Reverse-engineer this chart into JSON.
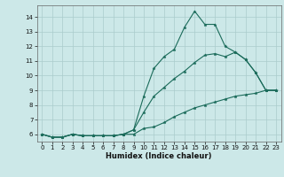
{
  "xlabel": "Humidex (Indice chaleur)",
  "background_color": "#cce8e8",
  "grid_color": "#aacccc",
  "line_color": "#1a6b5a",
  "xlim": [
    -0.5,
    23.5
  ],
  "ylim": [
    5.5,
    14.8
  ],
  "xticks": [
    0,
    1,
    2,
    3,
    4,
    5,
    6,
    7,
    8,
    9,
    10,
    11,
    12,
    13,
    14,
    15,
    16,
    17,
    18,
    19,
    20,
    21,
    22,
    23
  ],
  "yticks": [
    6,
    7,
    8,
    9,
    10,
    11,
    12,
    13,
    14
  ],
  "series1_x": [
    0,
    1,
    2,
    3,
    4,
    5,
    6,
    7,
    8,
    9,
    10,
    11,
    12,
    13,
    14,
    15,
    16,
    17,
    18,
    19,
    20,
    21,
    22,
    23
  ],
  "series1_y": [
    6.0,
    5.8,
    5.8,
    6.0,
    5.9,
    5.9,
    5.9,
    5.9,
    6.0,
    6.3,
    8.6,
    10.5,
    11.3,
    11.8,
    13.3,
    14.4,
    13.5,
    13.5,
    12.0,
    11.6,
    11.1,
    10.2,
    9.0,
    9.0
  ],
  "series2_x": [
    0,
    1,
    2,
    3,
    4,
    5,
    6,
    7,
    8,
    9,
    10,
    11,
    12,
    13,
    14,
    15,
    16,
    17,
    18,
    19,
    20,
    21,
    22,
    23
  ],
  "series2_y": [
    6.0,
    5.8,
    5.8,
    6.0,
    5.9,
    5.9,
    5.9,
    5.9,
    6.0,
    6.3,
    7.5,
    8.6,
    9.2,
    9.8,
    10.3,
    10.9,
    11.4,
    11.5,
    11.3,
    11.6,
    11.1,
    10.2,
    9.0,
    9.0
  ],
  "series3_x": [
    0,
    1,
    2,
    3,
    4,
    5,
    6,
    7,
    8,
    9,
    10,
    11,
    12,
    13,
    14,
    15,
    16,
    17,
    18,
    19,
    20,
    21,
    22,
    23
  ],
  "series3_y": [
    6.0,
    5.8,
    5.8,
    6.0,
    5.9,
    5.9,
    5.9,
    5.9,
    6.0,
    6.0,
    6.4,
    6.5,
    6.8,
    7.2,
    7.5,
    7.8,
    8.0,
    8.2,
    8.4,
    8.6,
    8.7,
    8.8,
    9.0,
    9.0
  ],
  "xlabel_fontsize": 6,
  "tick_fontsize": 5,
  "marker_size": 2.5,
  "line_width": 0.8
}
